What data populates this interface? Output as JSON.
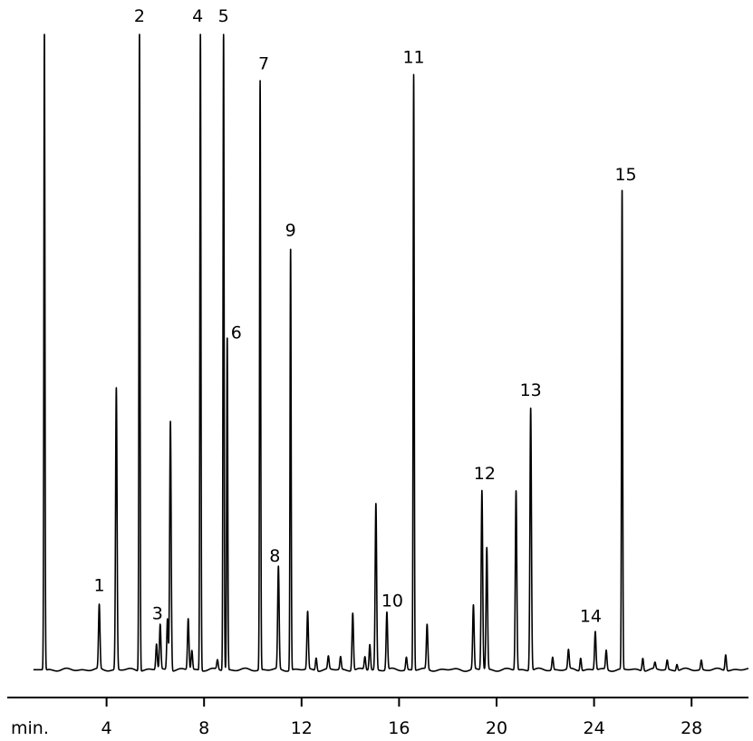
{
  "chart_data": {
    "type": "line",
    "title": "",
    "xlabel": "",
    "ylabel": "",
    "x_unit_label": "min.",
    "xlim": [
      0,
      30
    ],
    "x_ticks": [
      4,
      8,
      12,
      16,
      20,
      24,
      28
    ],
    "ylim": [
      0,
      100
    ],
    "grid": false,
    "legend": "none",
    "line_color": "#000000",
    "baseline_level": 0.8,
    "peaks": [
      {
        "x": 1.45,
        "height": 100,
        "label": ""
      },
      {
        "x": 3.7,
        "height": 10,
        "label": "1"
      },
      {
        "x": 4.4,
        "height": 44,
        "label": ""
      },
      {
        "x": 5.35,
        "height": 100,
        "label": "2"
      },
      {
        "x": 6.05,
        "height": 4,
        "label": ""
      },
      {
        "x": 6.2,
        "height": 7,
        "label": "3"
      },
      {
        "x": 6.5,
        "height": 8,
        "label": ""
      },
      {
        "x": 6.62,
        "height": 39,
        "label": ""
      },
      {
        "x": 7.35,
        "height": 8,
        "label": ""
      },
      {
        "x": 7.5,
        "height": 3,
        "label": ""
      },
      {
        "x": 7.85,
        "height": 100,
        "label": "4"
      },
      {
        "x": 8.55,
        "height": 1.5,
        "label": ""
      },
      {
        "x": 8.8,
        "height": 100,
        "label": "5"
      },
      {
        "x": 8.95,
        "height": 52,
        "label": "6"
      },
      {
        "x": 10.3,
        "height": 92,
        "label": "7"
      },
      {
        "x": 11.05,
        "height": 16,
        "label": "8"
      },
      {
        "x": 11.55,
        "height": 66,
        "label": "9"
      },
      {
        "x": 12.25,
        "height": 9,
        "label": ""
      },
      {
        "x": 12.6,
        "height": 2,
        "label": ""
      },
      {
        "x": 13.1,
        "height": 2,
        "label": ""
      },
      {
        "x": 13.6,
        "height": 2,
        "label": ""
      },
      {
        "x": 14.1,
        "height": 9,
        "label": ""
      },
      {
        "x": 14.6,
        "height": 2,
        "label": ""
      },
      {
        "x": 14.8,
        "height": 4,
        "label": ""
      },
      {
        "x": 15.05,
        "height": 26,
        "label": ""
      },
      {
        "x": 15.5,
        "height": 9,
        "label": "10"
      },
      {
        "x": 16.3,
        "height": 2,
        "label": ""
      },
      {
        "x": 16.6,
        "height": 93,
        "label": "11"
      },
      {
        "x": 17.15,
        "height": 7,
        "label": ""
      },
      {
        "x": 19.05,
        "height": 10,
        "label": ""
      },
      {
        "x": 19.4,
        "height": 28,
        "label": "12"
      },
      {
        "x": 19.6,
        "height": 19,
        "label": ""
      },
      {
        "x": 20.8,
        "height": 28,
        "label": ""
      },
      {
        "x": 21.4,
        "height": 41,
        "label": "13"
      },
      {
        "x": 22.3,
        "height": 2,
        "label": ""
      },
      {
        "x": 22.95,
        "height": 3,
        "label": ""
      },
      {
        "x": 23.45,
        "height": 2,
        "label": ""
      },
      {
        "x": 24.05,
        "height": 6,
        "label": "14"
      },
      {
        "x": 24.5,
        "height": 3,
        "label": ""
      },
      {
        "x": 25.15,
        "height": 75,
        "label": "15"
      },
      {
        "x": 26.0,
        "height": 2,
        "label": ""
      },
      {
        "x": 26.5,
        "height": 1,
        "label": ""
      },
      {
        "x": 27.0,
        "height": 1.5,
        "label": ""
      },
      {
        "x": 27.4,
        "height": 1,
        "label": ""
      },
      {
        "x": 28.4,
        "height": 1.5,
        "label": ""
      },
      {
        "x": 29.4,
        "height": 2.5,
        "label": ""
      }
    ]
  }
}
